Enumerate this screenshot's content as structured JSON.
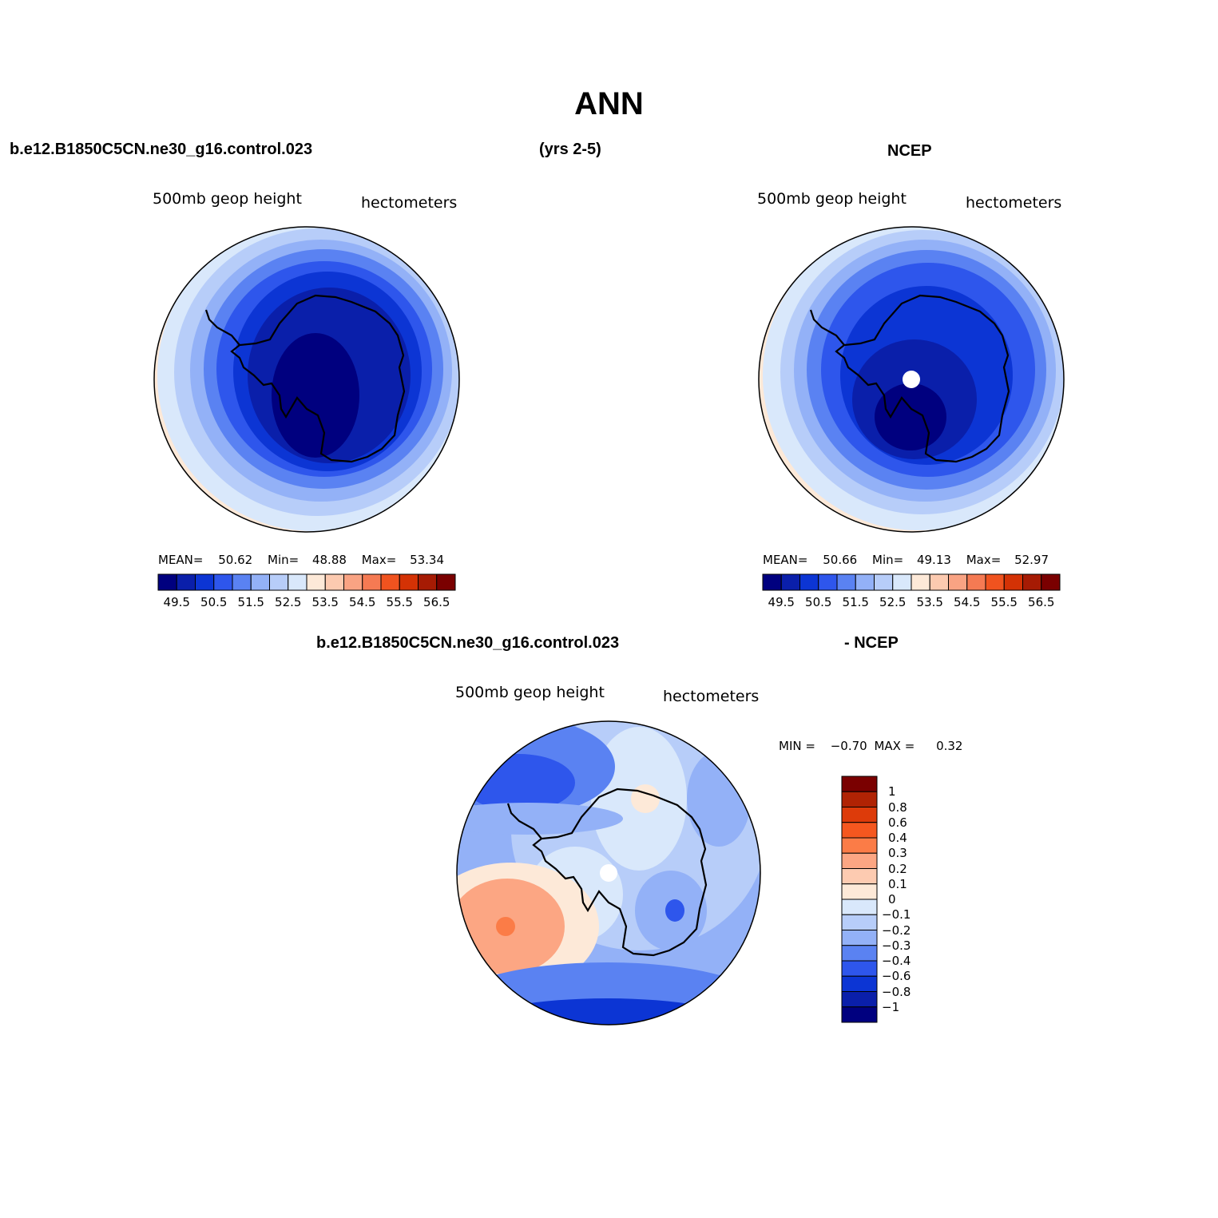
{
  "title": "ANN",
  "header": {
    "case_name": "b.e12.B1850C5CN.ne30_g16.control.023",
    "years": "(yrs 2-5)",
    "obs_name": "NCEP",
    "diff_case": "b.e12.B1850C5CN.ne30_g16.control.023",
    "diff_obs": "- NCEP"
  },
  "panels": {
    "model": {
      "variable": "500mb geop height",
      "units": "hectometers",
      "stats": {
        "mean_label": "MEAN=",
        "mean": "50.62",
        "min_label": "Min=",
        "min": "48.88",
        "max_label": "Max=",
        "max": "53.34"
      }
    },
    "obs": {
      "variable": "500mb geop height",
      "units": "hectometers",
      "stats": {
        "mean_label": "MEAN=",
        "mean": "50.66",
        "min_label": "Min=",
        "min": "49.13",
        "max_label": "Max=",
        "max": "52.97"
      }
    },
    "diff": {
      "variable": "500mb geop height",
      "units": "hectometers",
      "stats": {
        "min_label": "MIN =",
        "min": "−0.70",
        "max_label": "MAX =",
        "max": "0.32"
      }
    }
  },
  "colorbar_main": {
    "colors": [
      "#00007f",
      "#0a1faa",
      "#0c35d4",
      "#2e56ec",
      "#5a82f2",
      "#93b1f7",
      "#b7cdf9",
      "#d9e8fb",
      "#fde9d8",
      "#fccab0",
      "#f9a383",
      "#f57a53",
      "#f0531f",
      "#d43205",
      "#a61b04",
      "#7a0000"
    ],
    "tick_labels": [
      "49.5",
      "50.5",
      "51.5",
      "52.5",
      "53.5",
      "54.5",
      "55.5",
      "56.5"
    ]
  },
  "colorbar_diff": {
    "colors": [
      "#7a0000",
      "#b02304",
      "#dd3b0a",
      "#f5571f",
      "#fb7c47",
      "#fca683",
      "#fdcbb1",
      "#fde9d8",
      "#d9e8fb",
      "#b7cdf9",
      "#93b1f7",
      "#5a82f2",
      "#2e56ec",
      "#0c35d4",
      "#0a1faa",
      "#00007f"
    ],
    "tick_labels": [
      "1",
      "0.8",
      "0.6",
      "0.4",
      "0.3",
      "0.2",
      "0.1",
      "0",
      "−0.1",
      "−0.2",
      "−0.3",
      "−0.4",
      "−0.6",
      "−0.8",
      "−1"
    ]
  }
}
